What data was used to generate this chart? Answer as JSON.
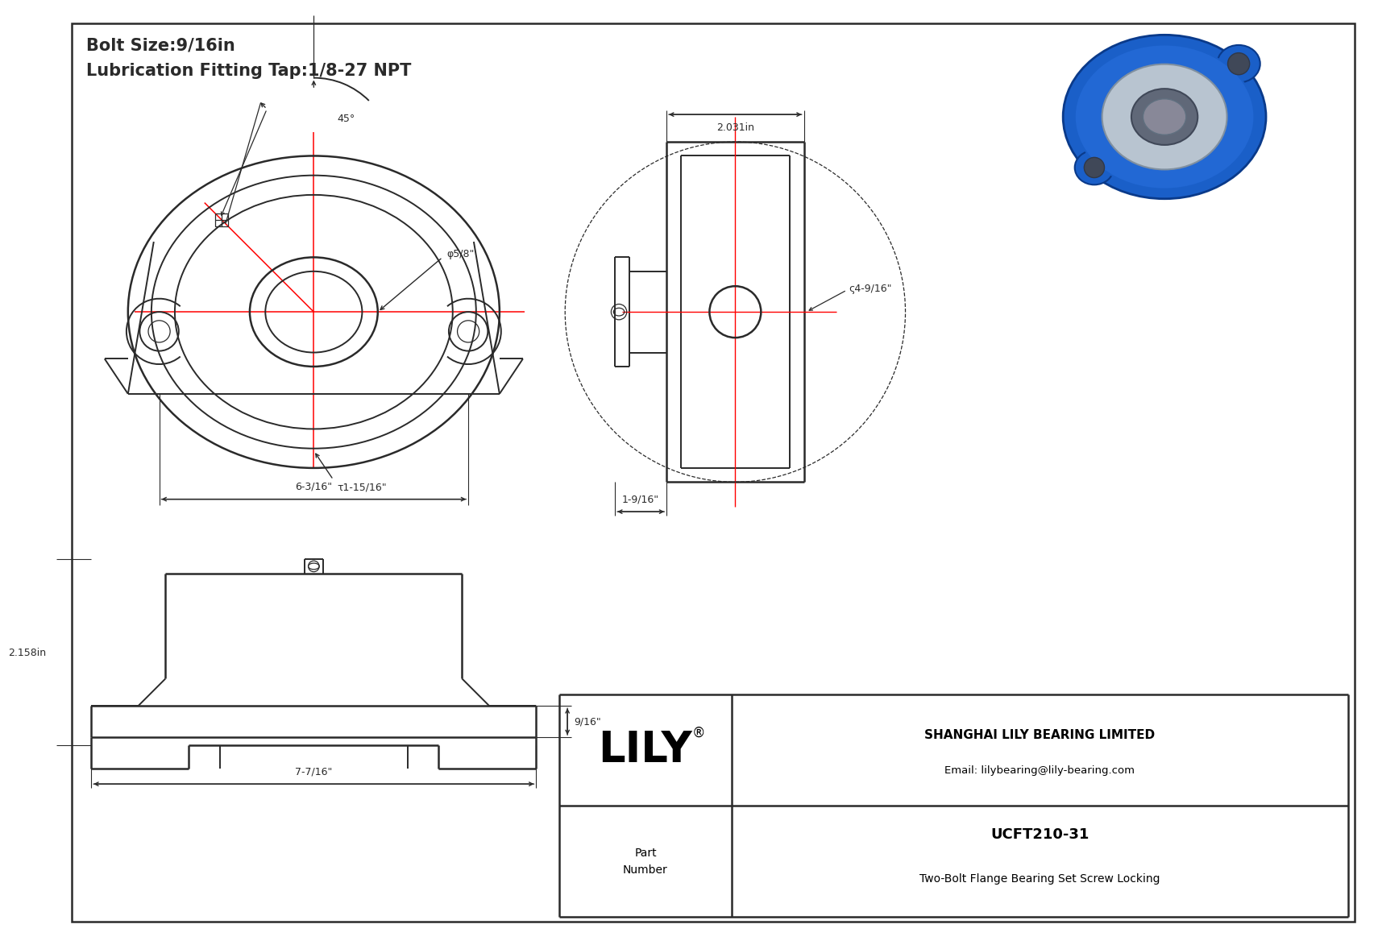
{
  "bg_color": "#ffffff",
  "line_color": "#2a2a2a",
  "dim_color": "#2a2a2a",
  "red_color": "#ff0000",
  "title_line1": "Bolt Size:9/16in",
  "title_line2": "Lubrication Fitting Tap:1/8-27 NPT",
  "company": "SHANGHAI LILY BEARING LIMITED",
  "email": "Email: lilybearing@lily-bearing.com",
  "part_number": "UCFT210-31",
  "part_desc": "Two-Bolt Flange Bearing Set Screw Locking",
  "dim_45": "45°",
  "dim_bore": "φ5/8\"",
  "dim_housing": "τ1-15/16\"",
  "dim_width": "6-3/16\"",
  "dim_od": "ς4-9/16\"",
  "dim_height": "2.031in",
  "dim_depth": "1-9/16\"",
  "dim_front_height": "2.158in",
  "dim_front_width": "7-7/16\"",
  "dim_flange_h": "9/16\""
}
